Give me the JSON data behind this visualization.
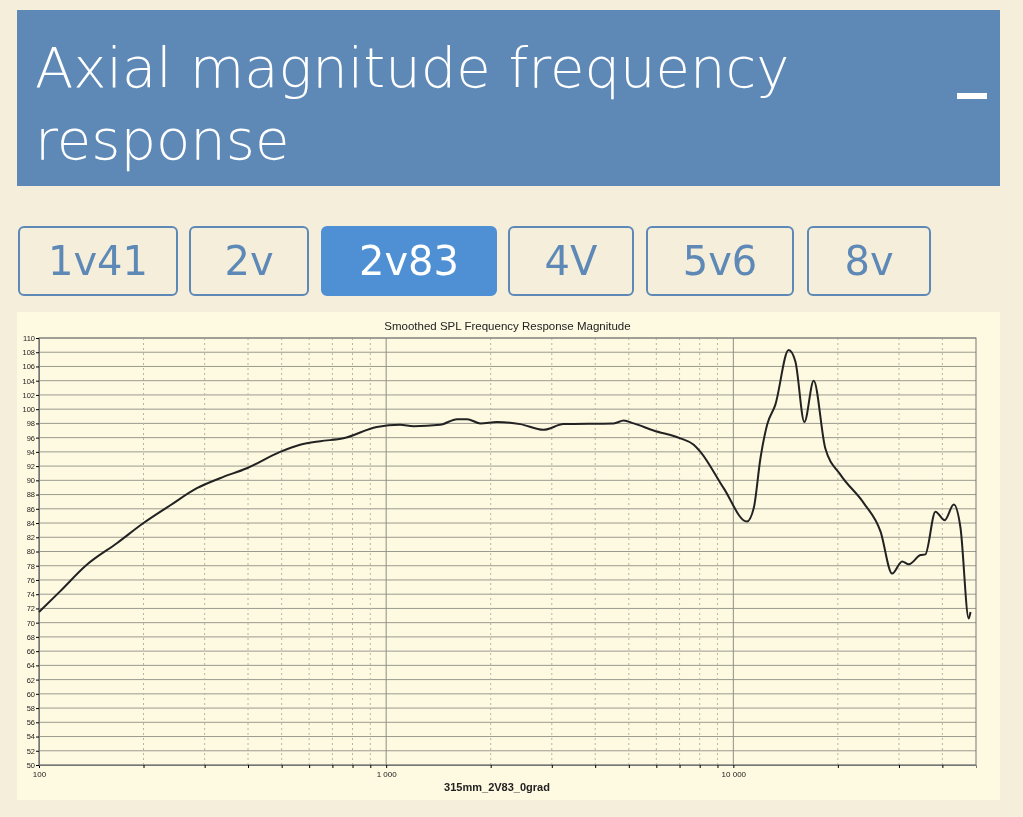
{
  "chart_data": {
    "type": "line",
    "title": "Axial magnitude frequency response",
    "subtitle": "Smoothed SPL Frequency Response Magnitude",
    "xlabel": "315mm_2V83_0grad",
    "annotations": [
      "1v41",
      "2v",
      "2v83",
      "4V",
      "5v6",
      "8v"
    ],
    "log": "x",
    "grid": true,
    "marker": "none",
    "line_style": "solid",
    "xlim": [
      100,
      50000
    ],
    "ylim": [
      50,
      110
    ],
    "xticks": [
      {
        "value": 100,
        "label": "100"
      },
      {
        "value": 200,
        "label": null
      },
      {
        "value": 300,
        "label": null
      },
      {
        "value": 400,
        "label": null
      },
      {
        "value": 500,
        "label": null
      },
      {
        "value": 600,
        "label": null
      },
      {
        "value": 700,
        "label": null
      },
      {
        "value": 800,
        "label": null
      },
      {
        "value": 900,
        "label": null
      },
      {
        "value": 1000,
        "label": "1 000"
      },
      {
        "value": 2000,
        "label": null
      },
      {
        "value": 3000,
        "label": null
      },
      {
        "value": 4000,
        "label": null
      },
      {
        "value": 5000,
        "label": null
      },
      {
        "value": 6000,
        "label": null
      },
      {
        "value": 7000,
        "label": null
      },
      {
        "value": 8000,
        "label": null
      },
      {
        "value": 9000,
        "label": null
      },
      {
        "value": 10000,
        "label": "10 000"
      },
      {
        "value": 20000,
        "label": null
      },
      {
        "value": 30000,
        "label": null
      },
      {
        "value": 40000,
        "label": null
      }
    ],
    "yticks": [
      50,
      52,
      54,
      56,
      58,
      60,
      62,
      64,
      66,
      68,
      70,
      72,
      74,
      76,
      78,
      80,
      82,
      84,
      86,
      88,
      90,
      92,
      94,
      96,
      98,
      100,
      102,
      104,
      106,
      108,
      110
    ],
    "series": [
      {
        "color": "#222222",
        "x": [
          100,
          115,
          137,
          168,
          200,
          239,
          285,
          332,
          397,
          495,
          565,
          646,
          753,
          940,
          1097,
          1199,
          1431,
          1600,
          1710,
          1868,
          2086,
          2433,
          2839,
          3243,
          4521,
          4831,
          5166,
          5893,
          7035,
          7689,
          8040,
          9377,
          10940,
          11450,
          11970,
          12510,
          13210,
          14430,
          15090,
          16020,
          17040,
          18400,
          20340,
          23750,
          26550,
          28670,
          30640,
          32020,
          34590,
          35730,
          38210,
          40620,
          43150,
          45120,
          47650,
          48220
        ],
        "values": [
          71.5,
          74.4,
          78.1,
          81.2,
          84.0,
          86.5,
          88.9,
          90.3,
          91.7,
          94.0,
          95.0,
          95.5,
          95.9,
          97.5,
          97.8,
          97.6,
          97.8,
          98.6,
          98.6,
          98.0,
          98.2,
          97.9,
          97.1,
          97.9,
          98.0,
          98.4,
          98.0,
          97.0,
          95.9,
          95.0,
          94.0,
          88.9,
          84.2,
          86.1,
          93.1,
          97.8,
          100.6,
          108.3,
          106.7,
          98.2,
          104.0,
          94.5,
          90.8,
          86.8,
          82.8,
          76.9,
          78.6,
          78.2,
          79.5,
          79.6,
          85.6,
          84.4,
          86.6,
          83.3,
          70.6,
          71.5
        ]
      }
    ]
  }
}
